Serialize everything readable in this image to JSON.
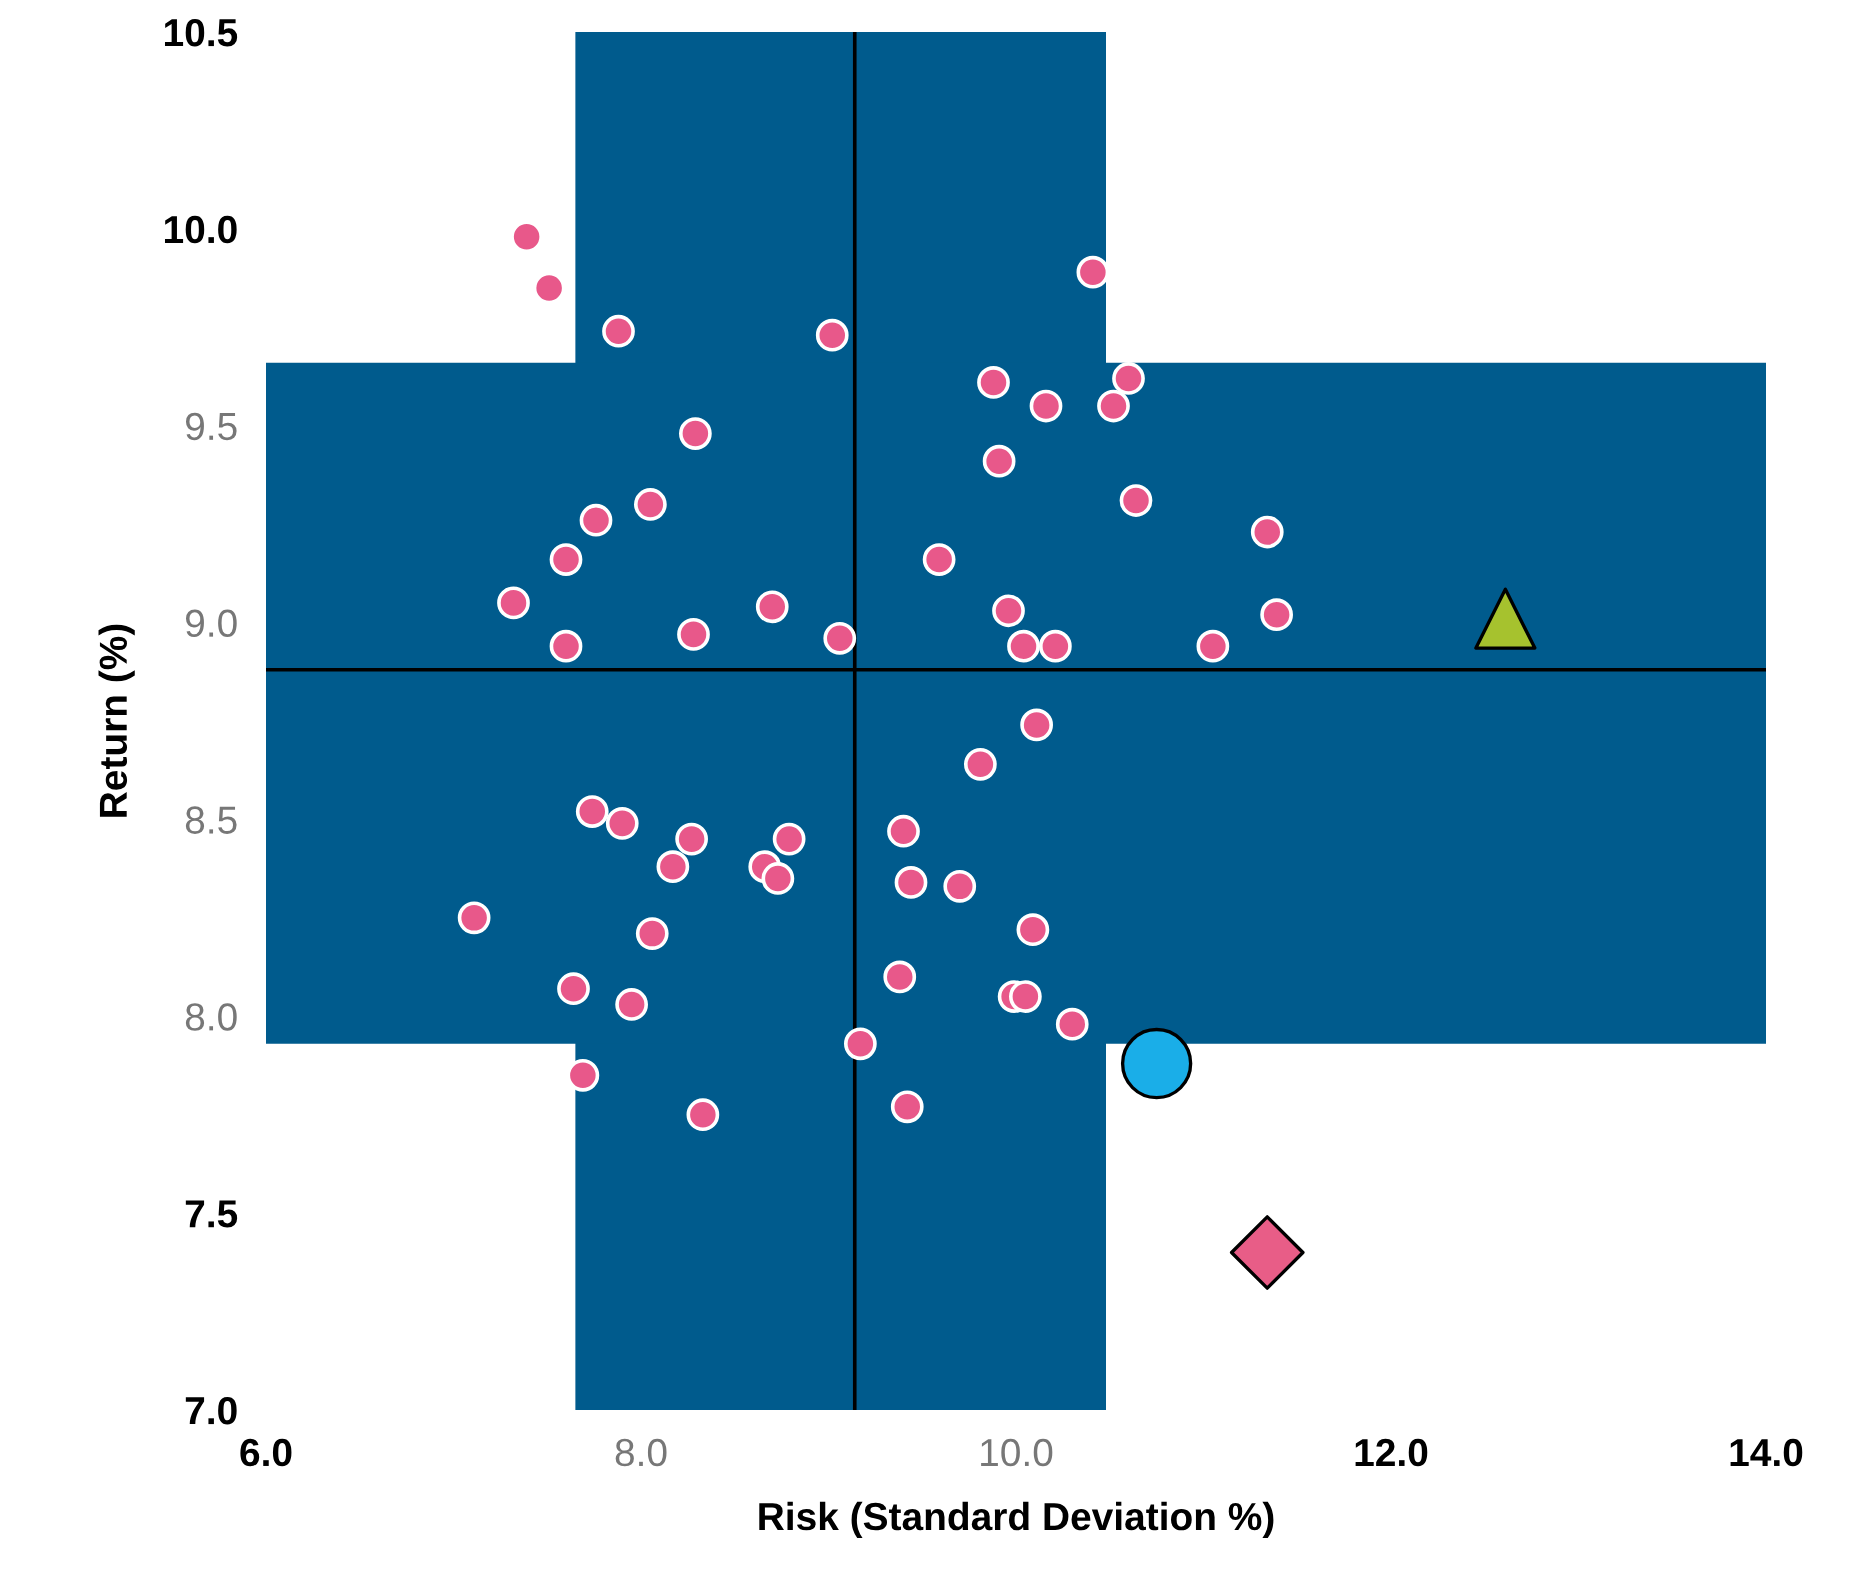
{
  "chart_data": {
    "type": "scatter",
    "xlabel": "Risk (Standard Deviation %)",
    "ylabel": "Return (%)",
    "xlim": [
      6.0,
      14.0
    ],
    "ylim": [
      7.0,
      10.5
    ],
    "xticks": [
      {
        "value": 6,
        "label": "6.0"
      },
      {
        "value": 8,
        "label": "8.0"
      },
      {
        "value": 10,
        "label": "10.0"
      },
      {
        "value": 12,
        "label": "12.0"
      },
      {
        "value": 14,
        "label": "14.0"
      }
    ],
    "yticks": [
      {
        "value": 7,
        "label": "7.0"
      },
      {
        "value": 7.5,
        "label": "7.5"
      },
      {
        "value": 8,
        "label": "8.0"
      },
      {
        "value": 8.5,
        "label": "8.5"
      },
      {
        "value": 9,
        "label": "9.0"
      },
      {
        "value": 9.5,
        "label": "9.5"
      },
      {
        "value": 10,
        "label": "10.0"
      },
      {
        "value": 10.5,
        "label": "10.5"
      }
    ],
    "grid": false,
    "legend": false,
    "bands": [
      {
        "axis": "x",
        "from": 7.65,
        "to": 10.48,
        "color": "#005b8d"
      },
      {
        "axis": "y",
        "from": 7.93,
        "to": 9.66,
        "color": "#005b8d"
      }
    ],
    "ref_lines": [
      {
        "axis": "x",
        "value": 9.14,
        "color": "#000000"
      },
      {
        "axis": "y",
        "value": 8.88,
        "color": "#000000"
      }
    ],
    "series": [
      {
        "color": "#e8588a",
        "marker": "circle",
        "x": [
          7.39,
          7.51,
          7.88,
          9.02,
          10.41,
          8.29,
          9.88,
          10.6,
          10.16,
          10.52,
          9.91,
          7.76,
          8.05,
          10.64,
          7.6,
          9.59,
          11.34,
          7.32,
          8.7,
          9.96,
          11.39,
          8.28,
          9.06,
          7.6,
          10.04,
          10.21,
          11.05,
          9.81,
          10.11,
          7.74,
          7.9,
          8.27,
          8.79,
          9.4,
          8.17,
          8.66,
          8.73,
          9.44,
          9.7,
          7.11,
          8.06,
          10.09,
          7.64,
          7.95,
          9.38,
          9.99,
          10.05,
          10.3,
          9.17,
          7.69,
          8.33,
          9.42
        ],
        "values": [
          9.98,
          9.85,
          9.74,
          9.73,
          9.89,
          9.48,
          9.61,
          9.62,
          9.55,
          9.55,
          9.41,
          9.26,
          9.3,
          9.31,
          9.16,
          9.16,
          9.23,
          9.05,
          9.04,
          9.03,
          9.02,
          8.97,
          8.96,
          8.94,
          8.94,
          8.94,
          8.94,
          8.64,
          8.74,
          8.52,
          8.49,
          8.45,
          8.45,
          8.47,
          8.38,
          8.38,
          8.35,
          8.34,
          8.33,
          8.25,
          8.21,
          8.22,
          8.07,
          8.03,
          8.1,
          8.05,
          8.05,
          7.98,
          7.93,
          7.85,
          7.75,
          7.77
        ]
      },
      {
        "color": "#a6c22e",
        "marker": "triangle",
        "x": [
          12.61
        ],
        "values": [
          9.01
        ]
      },
      {
        "color": "#1aaee8",
        "marker": "circle",
        "x": [
          10.75
        ],
        "values": [
          7.88
        ]
      },
      {
        "color": "#e85d87",
        "marker": "diamond",
        "x": [
          11.34
        ],
        "values": [
          7.4
        ]
      }
    ]
  }
}
